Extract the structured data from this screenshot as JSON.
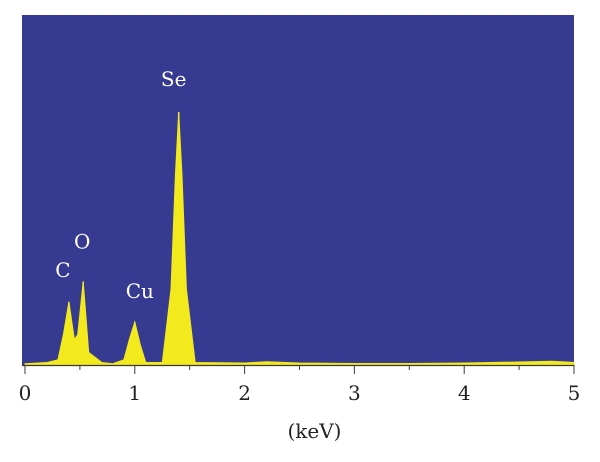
{
  "colors": {
    "plot_background": "#363a91",
    "spectrum_fill": "#f2ea1c",
    "axis": "#3a3a3a",
    "peak_label": "#ffffff",
    "text": "#222222"
  },
  "chart_data": {
    "type": "area",
    "title": "",
    "xlabel": "(keV)",
    "ylabel": "",
    "xlim": [
      0,
      5
    ],
    "ylim": [
      0,
      100
    ],
    "xticks": [
      0,
      1,
      2,
      3,
      4,
      5
    ],
    "grid": false,
    "legend": "none",
    "peaks": [
      {
        "label": "C",
        "x": 0.4,
        "y": 25,
        "width": 0.045
      },
      {
        "label": "O",
        "x": 0.53,
        "y": 33,
        "width": 0.03
      },
      {
        "label": "Cu",
        "x": 1.0,
        "y": 17,
        "width": 0.045
      },
      {
        "label": "Se",
        "x": 1.4,
        "y": 100,
        "width": 0.04
      }
    ],
    "x": [
      0,
      0.2,
      0.3,
      0.35,
      0.4,
      0.45,
      0.48,
      0.53,
      0.58,
      0.7,
      0.8,
      0.9,
      0.95,
      1.0,
      1.05,
      1.1,
      1.25,
      1.33,
      1.37,
      1.4,
      1.43,
      1.47,
      1.55,
      2.0,
      2.2,
      2.5,
      3.0,
      3.5,
      4.0,
      4.5,
      4.8,
      5.0
    ],
    "y": [
      0.5,
      1,
      2,
      12,
      25,
      10,
      12,
      33,
      5,
      1,
      0.5,
      2,
      10,
      17,
      8,
      1,
      1,
      30,
      75,
      100,
      75,
      30,
      1,
      0.8,
      1.3,
      0.8,
      0.6,
      0.6,
      0.8,
      1.2,
      1.5,
      1
    ]
  }
}
